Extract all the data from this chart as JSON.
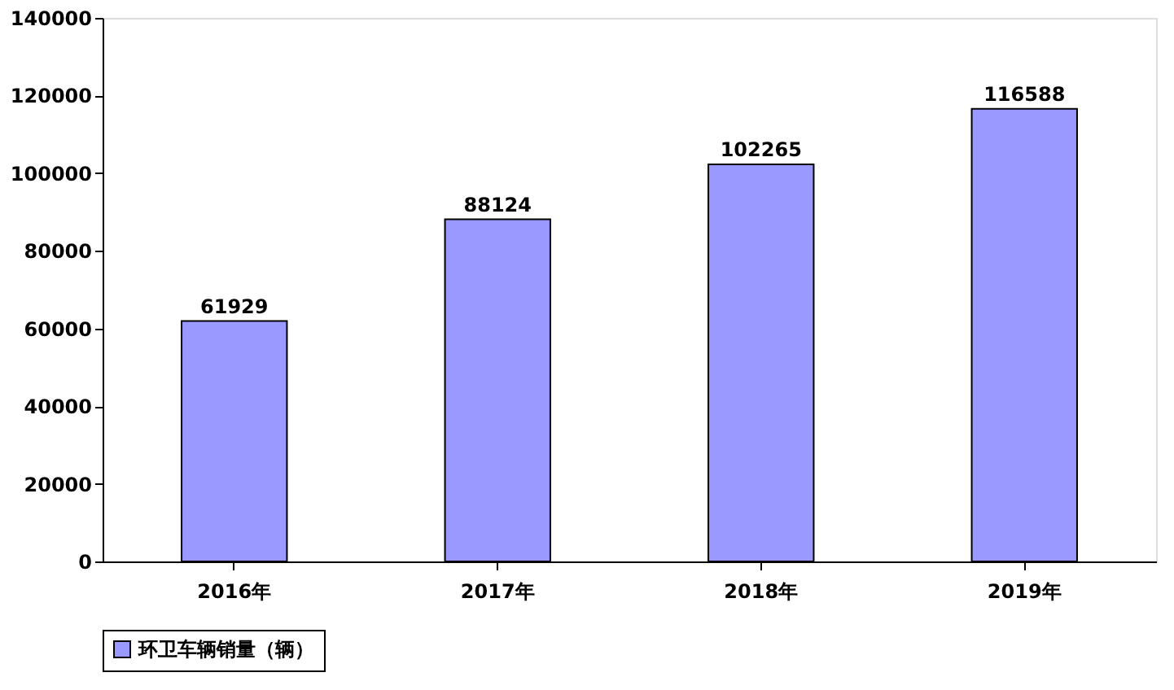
{
  "chart_data": {
    "type": "bar",
    "categories": [
      "2016年",
      "2017年",
      "2018年",
      "2019年"
    ],
    "series": [
      {
        "name": "环卫车辆销量（辆）",
        "color": "#9999ff",
        "values": [
          61929,
          88124,
          102265,
          116588
        ]
      }
    ],
    "ylim": [
      0,
      140000
    ],
    "yticks": [
      0,
      20000,
      40000,
      60000,
      80000,
      100000,
      120000,
      140000
    ],
    "data_labels": true,
    "grid": false,
    "legend": "bottom"
  }
}
